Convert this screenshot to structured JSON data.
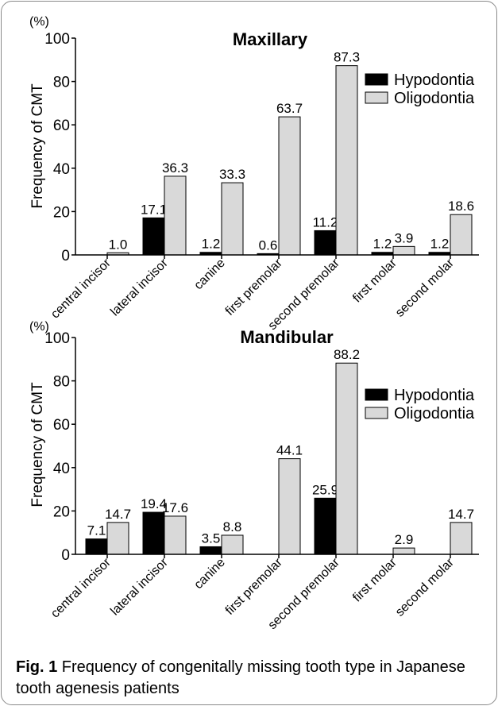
{
  "figure": {
    "label": "Fig. 1",
    "caption": "Frequency of congenitally missing tooth type in Japanese tooth agenesis patients"
  },
  "chart_data": [
    {
      "type": "bar",
      "title": "Maxillary",
      "ylabel": "Frequency of CMT",
      "yunit": "(%)",
      "ylim": [
        0,
        100
      ],
      "yticks": [
        0,
        20,
        40,
        60,
        80,
        100
      ],
      "grid": false,
      "legend": "top-right",
      "categories": [
        "central incisor",
        "lateral incisor",
        "canine",
        "first premolar",
        "second premolar",
        "first molar",
        "second molar"
      ],
      "series": [
        {
          "name": "Hypodontia",
          "color": "#000000",
          "values": [
            null,
            17.1,
            1.2,
            0.6,
            11.2,
            1.2,
            1.2
          ]
        },
        {
          "name": "Oligodontia",
          "color": "#d9d9d9",
          "values": [
            1.0,
            36.3,
            33.3,
            63.7,
            87.3,
            3.9,
            18.6
          ]
        }
      ]
    },
    {
      "type": "bar",
      "title": "Mandibular",
      "ylabel": "Frequency of CMT",
      "yunit": "(%)",
      "ylim": [
        0,
        100
      ],
      "yticks": [
        0,
        20,
        40,
        60,
        80,
        100
      ],
      "grid": false,
      "legend": "top-right",
      "categories": [
        "central incisor",
        "lateral incisor",
        "canine",
        "first premolar",
        "second premolar",
        "first molar",
        "second molar"
      ],
      "series": [
        {
          "name": "Hypodontia",
          "color": "#000000",
          "values": [
            7.1,
            19.4,
            3.5,
            null,
            25.9,
            null,
            null
          ]
        },
        {
          "name": "Oligodontia",
          "color": "#d9d9d9",
          "values": [
            14.7,
            17.6,
            8.8,
            44.1,
            88.2,
            2.9,
            14.7
          ]
        }
      ]
    }
  ]
}
